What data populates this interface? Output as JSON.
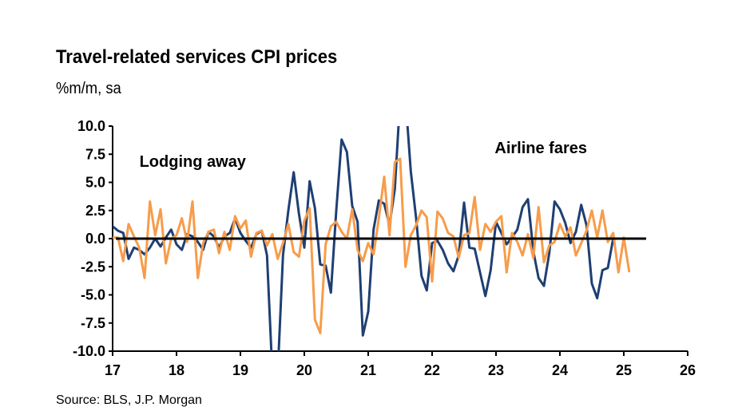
{
  "chart_data": {
    "type": "line",
    "title": "Travel-related services CPI prices",
    "subtitle": "%m/m, sa",
    "source": "Source: BLS, J.P. Morgan",
    "xlim": [
      17,
      26
    ],
    "ylim": [
      -10,
      10
    ],
    "x_ticks": [
      "17",
      "18",
      "19",
      "20",
      "21",
      "22",
      "23",
      "24",
      "25",
      "26"
    ],
    "y_ticks": [
      "10.0",
      "7.5",
      "5.0",
      "2.5",
      "0.0",
      "-2.5",
      "-5.0",
      "-7.5",
      "-10.0"
    ],
    "grid": false,
    "annotations": [
      {
        "text": "Lodging away",
        "x": 17.42,
        "y": 6.4
      },
      {
        "text": "Airline fares",
        "x": 22.98,
        "y": 7.6
      }
    ],
    "series": [
      {
        "color": "#1f3f73",
        "x_start": 17.0,
        "x_step": 0.0833333,
        "values": [
          1.1,
          0.7,
          0.5,
          -1.8,
          -0.8,
          -1.0,
          -1.4,
          -0.8,
          0.0,
          -0.7,
          0.1,
          0.8,
          -0.5,
          -1.0,
          0.4,
          0.2,
          -0.3,
          -1.0,
          0.6,
          0.2,
          -0.8,
          0.2,
          0.5,
          1.8,
          0.5,
          -0.2,
          -0.8,
          0.4,
          0.7,
          -1.5,
          -12.0,
          -12.0,
          -1.5,
          2.5,
          5.9,
          2.2,
          -0.8,
          5.1,
          2.7,
          -2.3,
          -2.4,
          -4.8,
          2.5,
          8.8,
          7.7,
          2.9,
          1.5,
          -8.6,
          -6.5,
          0.8,
          3.4,
          3.1,
          1.2,
          4.4,
          12.5,
          12.5,
          6.0,
          1.8,
          -3.3,
          -4.6,
          -0.4,
          -0.2,
          -1.0,
          -2.2,
          -2.9,
          -1.5,
          3.2,
          -0.8,
          -0.9,
          -3.0,
          -5.1,
          -2.8,
          1.5,
          0.5,
          -0.5,
          0.1,
          0.8,
          2.8,
          3.5,
          -1.1,
          -3.5,
          -4.2,
          -1.3,
          3.3,
          2.6,
          1.4,
          -0.4,
          0.6,
          3.0,
          1.2,
          -4.0,
          -5.3,
          -2.8,
          -2.6,
          0.0
        ]
      },
      {
        "color": "#f79c4a",
        "x_start": 17.0,
        "x_step": 0.0833333,
        "values": [
          0.1,
          0.1,
          -2.0,
          1.3,
          0.2,
          -0.8,
          -3.5,
          3.3,
          0.3,
          2.6,
          -2.2,
          0.0,
          0.3,
          1.8,
          -0.3,
          3.3,
          -3.5,
          -0.4,
          0.6,
          0.8,
          -1.3,
          0.6,
          -1.0,
          2.0,
          0.9,
          1.6,
          -1.6,
          0.5,
          0.7,
          -0.6,
          0.4,
          -1.8,
          -0.4,
          1.3,
          -1.2,
          -1.6,
          1.6,
          2.7,
          -7.2,
          -8.4,
          -0.5,
          1.1,
          1.5,
          0.6,
          0.0,
          2.6,
          -1.0,
          -2.0,
          -0.4,
          -1.4,
          1.8,
          5.5,
          0.3,
          6.8,
          7.1,
          -2.5,
          0.3,
          1.2,
          2.5,
          1.9,
          -3.8,
          2.4,
          1.8,
          0.5,
          0.2,
          -1.7,
          0.3,
          0.5,
          3.7,
          -1.0,
          1.3,
          0.6,
          1.5,
          2.0,
          -3.0,
          0.5,
          -0.3,
          -1.5,
          0.4,
          -1.7,
          2.8,
          -2.1,
          -0.6,
          -0.3,
          1.3,
          0.2,
          1.0,
          -1.5,
          -0.4,
          0.7,
          2.5,
          0.1,
          2.5,
          -0.3,
          0.5,
          -3.0,
          0.1,
          -2.9
        ]
      }
    ]
  }
}
